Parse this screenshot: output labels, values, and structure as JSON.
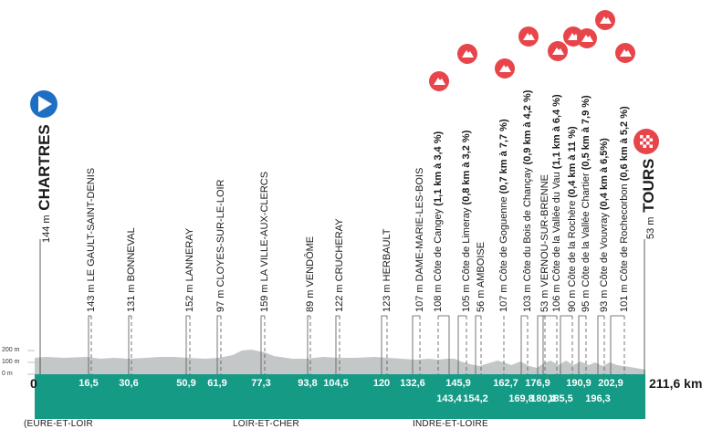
{
  "start": {
    "altitude": "144 m",
    "name": "CHARTRES",
    "km": "0"
  },
  "finish": {
    "altitude": "53 m",
    "name": "TOURS",
    "distance": "211,6 km"
  },
  "y_axis": [
    "200 m",
    "100 m",
    "0 m"
  ],
  "places": [
    {
      "altitude": "143 m",
      "name": "LE GAULT-SAINT-DENIS",
      "km": "16,5"
    },
    {
      "altitude": "131 m",
      "name": "BONNEVAL",
      "km": "30,6"
    },
    {
      "altitude": "152 m",
      "name": "LANNERAY",
      "km": "50,9"
    },
    {
      "altitude": "97 m",
      "name": "CLOYES-SUR-LE-LOIR",
      "km": "61,9"
    },
    {
      "altitude": "159 m",
      "name": "LA VILLE-AUX-CLERCS",
      "km": "77,3"
    },
    {
      "altitude": "89 m",
      "name": "VENDÔME",
      "km": "93,8"
    },
    {
      "altitude": "122 m",
      "name": "CRUCHERAY",
      "km": "104,5"
    },
    {
      "altitude": "123 m",
      "name": "HERBAULT",
      "km": "120"
    },
    {
      "altitude": "107 m",
      "name": "DAME-MARIE-LES-BOIS",
      "km": "132,6"
    },
    {
      "altitude": "108 m",
      "name": "Côte de Cangey",
      "detail": "(1,1 km à 3,4 %)",
      "km": "143,4",
      "climb": true
    },
    {
      "altitude": "105 m",
      "name": "Côte de Limeray",
      "detail": "(0,8 km à 3,2 %)",
      "km": "145,9",
      "climb": true
    },
    {
      "altitude": "56 m",
      "name": "AMBOISE",
      "km": "154,2"
    },
    {
      "altitude": "107 m",
      "name": "Côte de Goguenne",
      "detail": "(0,7 km à 7,7 %)",
      "km": "162,7",
      "climb": true
    },
    {
      "altitude": "103 m",
      "name": "Côte du Bois de Chançay",
      "detail": "(0,9 km à 4,2 %)",
      "km": "169,8",
      "climb": true
    },
    {
      "altitude": "53 m",
      "name": "VERNOU-SUR-BRENNE",
      "km": "176,9"
    },
    {
      "altitude": "106 m",
      "name": "Côte de la Vallée du Vau",
      "detail": "(1,1 km à 6,4 %)",
      "km": "180,4",
      "climb": true
    },
    {
      "altitude": "90 m",
      "name": "Côte de la Rochère",
      "detail": "(0,4 km à 11 %)",
      "km": "185,5",
      "climb": true
    },
    {
      "altitude": "95 m",
      "name": "Côte de la Vallée Chartier",
      "detail": "(0,5 km à 7,9 %)",
      "km": "190,9",
      "climb": true
    },
    {
      "altitude": "93 m",
      "name": "Côte de Vouvray",
      "detail": "(0,4 km à 6,5%)",
      "km": "196,3",
      "climb": true
    },
    {
      "altitude": "101 m",
      "name": "Côte de Rochecorbon",
      "detail": "(0,6 km à 5,2 %)",
      "km": "202,9",
      "climb": true
    }
  ],
  "regions": [
    "(EURE-ET-LOIR",
    "LOIR-ET-CHER",
    "INDRE-ET-LOIRE"
  ],
  "colors": {
    "band": "#159a86",
    "profile": "#b9bcbd",
    "climb_icon": "#e8454a",
    "start_icon": "#1e6fc3"
  }
}
